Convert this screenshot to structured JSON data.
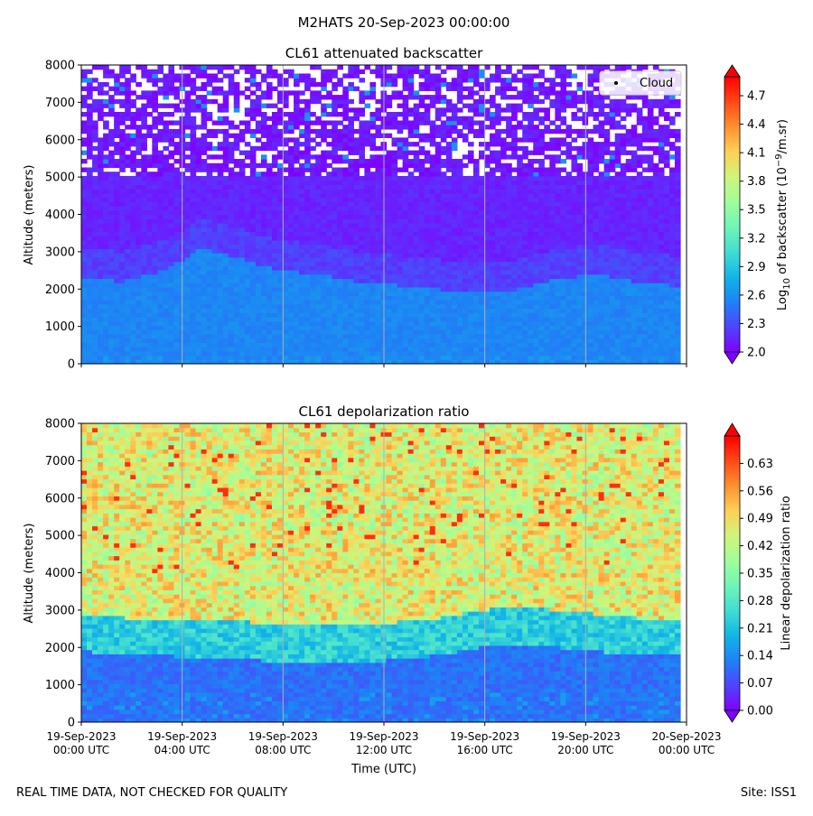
{
  "figure_title": "M2HATS 20-Sep-2023 00:00:00",
  "footer_left": "REAL TIME DATA, NOT CHECKED FOR QUALITY",
  "footer_right": "Site: ISS1",
  "colors": {
    "rainbow_stops": [
      "#8000ff",
      "#4f44fc",
      "#1e82f5",
      "#12b5e6",
      "#42ddd2",
      "#70f5b8",
      "#a0fe9a",
      "#d0f47a",
      "#fed057",
      "#ff9130",
      "#ff4917",
      "#ff0000"
    ],
    "gridline": "#b0b0b0"
  },
  "x_axis": {
    "label": "Time (UTC)",
    "ticks": [
      {
        "value": 0,
        "line1": "19-Sep-2023",
        "line2": "00:00 UTC"
      },
      {
        "value": 4,
        "line1": "19-Sep-2023",
        "line2": "04:00 UTC"
      },
      {
        "value": 8,
        "line1": "19-Sep-2023",
        "line2": "08:00 UTC"
      },
      {
        "value": 12,
        "line1": "19-Sep-2023",
        "line2": "12:00 UTC"
      },
      {
        "value": 16,
        "line1": "19-Sep-2023",
        "line2": "16:00 UTC"
      },
      {
        "value": 20,
        "line1": "19-Sep-2023",
        "line2": "20:00 UTC"
      },
      {
        "value": 24,
        "line1": "20-Sep-2023",
        "line2": "00:00 UTC"
      }
    ]
  },
  "chart_data": [
    {
      "type": "heatmap",
      "title": "CL61 attenuated backscatter",
      "ylabel": "Altitude (meters)",
      "xlim": [
        "19-Sep-2023 00:00 UTC",
        "20-Sep-2023 00:00 UTC"
      ],
      "ylim": [
        0,
        8000
      ],
      "yticks": [
        0,
        1000,
        2000,
        3000,
        4000,
        5000,
        6000,
        7000,
        8000
      ],
      "grid": "vertical lines at x ticks",
      "legend": {
        "placement": "upper right",
        "entries": [
          "Cloud"
        ]
      },
      "colorbar": {
        "label_prefix": "Log",
        "label_sub": "10",
        "label_mid": " of backscatter (10",
        "label_sup": "−9",
        "label_suffix": "/m.sr)",
        "range": [
          2.0,
          4.9
        ],
        "ticks": [
          "2.0",
          "2.3",
          "2.6",
          "2.9",
          "3.2",
          "3.5",
          "3.8",
          "4.1",
          "4.4",
          "4.7"
        ],
        "extend": "both",
        "colormap": "rainbow"
      },
      "field_description_values": {
        "boundary_layer_top_m": [
          2700,
          2600,
          2900,
          3500,
          3200,
          2900,
          2800,
          2600,
          2500,
          2400,
          2300,
          2400,
          2700,
          2800,
          2600,
          2500
        ],
        "near_surface_value": 2.55,
        "aloft_value": 2.0,
        "noisy_gaps_above_m": 5000
      }
    },
    {
      "type": "heatmap",
      "title": "CL61 depolarization ratio",
      "ylabel": "Altitude (meters)",
      "xlim": [
        "19-Sep-2023 00:00 UTC",
        "20-Sep-2023 00:00 UTC"
      ],
      "ylim": [
        0,
        8000
      ],
      "yticks": [
        0,
        1000,
        2000,
        3000,
        4000,
        5000,
        6000,
        7000,
        8000
      ],
      "grid": "vertical lines at x ticks",
      "colorbar": {
        "label": "Linear depolarization ratio",
        "range": [
          0.0,
          0.7
        ],
        "ticks": [
          "0.00",
          "0.07",
          "0.14",
          "0.21",
          "0.28",
          "0.35",
          "0.42",
          "0.49",
          "0.56",
          "0.63"
        ],
        "extend": "both",
        "colormap": "rainbow"
      },
      "field_description_values": {
        "boundary_layer_top_m": [
          2600,
          2500,
          2500,
          2400,
          2400,
          2300,
          2300,
          2300,
          2400,
          2500,
          2700,
          2800,
          2700,
          2600,
          2500,
          2500
        ],
        "near_surface_value": 0.1,
        "aloft_value": 0.45
      }
    }
  ]
}
